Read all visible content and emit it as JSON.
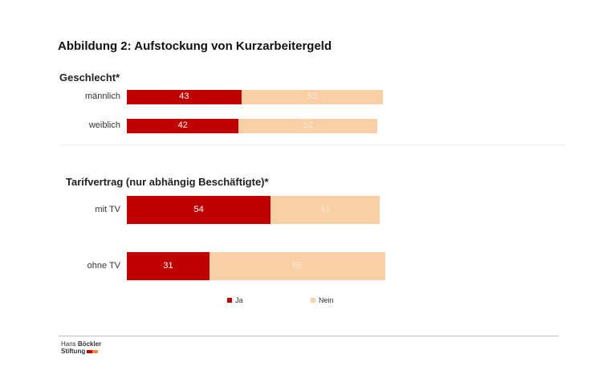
{
  "title": "Abbildung 2: Aufstockung von Kurzarbeitergeld",
  "chart_data": {
    "type": "bar",
    "orientation": "horizontal",
    "stacked": true,
    "legend": [
      "Ja",
      "Nein"
    ],
    "colors": {
      "Ja": "#c00000",
      "Nein": "#fbcfa6"
    },
    "groups": [
      {
        "title": "Geschlecht*",
        "categories": [
          "männlich",
          "weiblich"
        ],
        "series": [
          {
            "name": "Ja",
            "values": [
              43,
              42
            ]
          },
          {
            "name": "Nein",
            "values": [
              53,
              52
            ]
          }
        ]
      },
      {
        "title": "Tarifvertrag (nur abhängig Beschäftigte)*",
        "categories": [
          "mit TV",
          "ohne TV"
        ],
        "series": [
          {
            "name": "Ja",
            "values": [
              54,
              31
            ]
          },
          {
            "name": "Nein",
            "values": [
              41,
              66
            ]
          }
        ]
      }
    ]
  },
  "footer": {
    "logo_line1_a": "Hans ",
    "logo_line1_b": "Böckler",
    "logo_line2": "Stiftung",
    "logo_colors": [
      "#c00000",
      "#f08c3c"
    ]
  }
}
